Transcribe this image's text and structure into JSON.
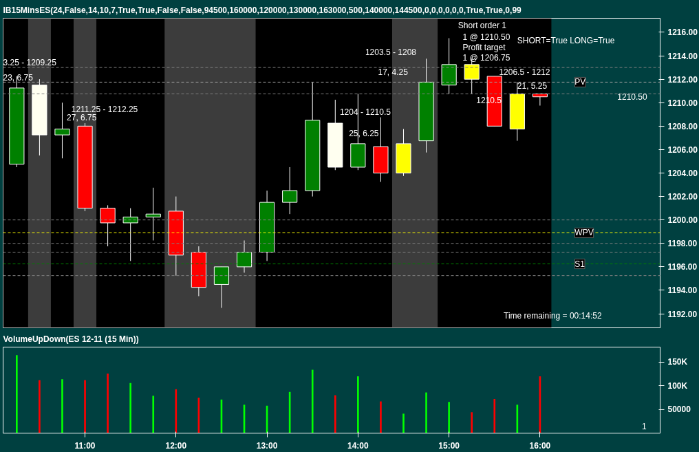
{
  "chart_data": [
    {
      "type": "candlestick",
      "title": "IB15MinsES(24,False,14,10,7,True,True,False,False,94500,160000,120000,130000,163000,500,140000,144500,0,0,0,0,0,0,True,True,0,99",
      "x": [
        10.25,
        10.5,
        10.75,
        11,
        11.25,
        11.5,
        11.75,
        12,
        12.25,
        12.5,
        12.75,
        13,
        13.25,
        13.5,
        13.75,
        14,
        14.25,
        14.5,
        14.75,
        15,
        15.25,
        15.5,
        15.75,
        16
      ],
      "ohlc": [
        [
          1204.75,
          1212.25,
          1204.5,
          1211.25
        ],
        [
          1211.5,
          1212.0,
          1205.5,
          1207.25
        ],
        [
          1207.25,
          1210.0,
          1205.25,
          1207.75
        ],
        [
          1208.0,
          1208.25,
          1200.75,
          1201.0
        ],
        [
          1201.0,
          1201.25,
          1197.75,
          1199.75
        ],
        [
          1199.75,
          1201.0,
          1196.5,
          1200.25
        ],
        [
          1200.25,
          1202.75,
          1198.25,
          1200.5
        ],
        [
          1200.75,
          1202.0,
          1195.25,
          1197.0
        ],
        [
          1197.25,
          1197.75,
          1193.5,
          1194.25
        ],
        [
          1194.5,
          1196.0,
          1192.5,
          1196.0
        ],
        [
          1196.0,
          1198.25,
          1195.5,
          1197.25
        ],
        [
          1197.25,
          1202.5,
          1196.5,
          1201.5
        ],
        [
          1201.5,
          1204.5,
          1200.5,
          1202.5
        ],
        [
          1202.5,
          1211.75,
          1202.0,
          1208.5
        ],
        [
          1208.25,
          1210.25,
          1204.25,
          1204.5
        ],
        [
          1204.5,
          1210.75,
          1204.25,
          1206.5
        ],
        [
          1206.25,
          1208.75,
          1203.25,
          1204.0
        ],
        [
          1206.5,
          1207.75,
          1203.75,
          1204.0
        ],
        [
          1206.75,
          1213.75,
          1205.75,
          1211.75
        ],
        [
          1211.5,
          1215.5,
          1210.75,
          1213.25
        ],
        [
          1213.25,
          1213.75,
          1210.75,
          1212.0
        ],
        [
          1212.25,
          1212.25,
          1208.0,
          1208.0
        ],
        [
          1210.75,
          1211.75,
          1206.75,
          1207.75
        ],
        [
          1210.75,
          1210.75,
          1209.75,
          1210.5
        ]
      ],
      "colors": [
        "#008000",
        "#fffff0",
        "#008000",
        "#ff0000",
        "#ff0000",
        "#008000",
        "#008000",
        "#ff0000",
        "#ff0000",
        "#008000",
        "#008000",
        "#008000",
        "#008000",
        "#008000",
        "#fffff0",
        "#008000",
        "#ff0000",
        "#ffff00",
        "#008000",
        "#008000",
        "#ffff00",
        "#ff0000",
        "#ffff00",
        "#ff0000"
      ],
      "xlim": [
        10.1,
        17.32
      ],
      "ylim": [
        1190.8,
        1217.2
      ],
      "yticks": [
        {
          "value": 1192,
          "label": "1192.00"
        },
        {
          "value": 1194,
          "label": "1194.00"
        },
        {
          "value": 1196,
          "label": "1196.00"
        },
        {
          "value": 1198,
          "label": "1198.00"
        },
        {
          "value": 1200,
          "label": "1200.00"
        },
        {
          "value": 1202,
          "label": "1202.00"
        },
        {
          "value": 1204,
          "label": "1204.00"
        },
        {
          "value": 1206,
          "label": "1206.00"
        },
        {
          "value": 1208,
          "label": "1208.00"
        },
        {
          "value": 1210,
          "label": "1210.00"
        },
        {
          "value": 1212,
          "label": "1212.00"
        },
        {
          "value": 1214,
          "label": "1214.00"
        },
        {
          "value": 1216,
          "label": "1216.00"
        }
      ],
      "tick_labels": "y",
      "bands": [
        {
          "axis": "x",
          "from": 10.1,
          "to": 16.125,
          "color": "#000000"
        },
        {
          "axis": "x",
          "from": 10.375,
          "to": 10.625,
          "color": "#3c3c3c"
        },
        {
          "axis": "x",
          "from": 10.875,
          "to": 11.125,
          "color": "#3c3c3c"
        },
        {
          "axis": "x",
          "from": 11.875,
          "to": 12.875,
          "color": "#3c3c3c"
        },
        {
          "axis": "x",
          "from": 14.375,
          "to": 14.875,
          "color": "#3c3c3c"
        }
      ],
      "ref_lines": [
        {
          "axis": "y",
          "value": 1213.0,
          "color": "#808080",
          "line_style": "dashed"
        },
        {
          "axis": "y",
          "value": 1211.75,
          "label": "PV",
          "color": "#a0a0a0",
          "line_style": "dashed"
        },
        {
          "axis": "y",
          "value": 1210.75,
          "color": "#808080",
          "line_style": "dashed"
        },
        {
          "axis": "y",
          "value": 1200.0,
          "color": "#808080",
          "line_style": "dashed"
        },
        {
          "axis": "y",
          "value": 1198.9,
          "label": "WPV",
          "color": "#ffff00",
          "line_style": "dashed"
        },
        {
          "axis": "y",
          "value": 1198.0,
          "color": "#808080",
          "line_style": "dashed"
        },
        {
          "axis": "y",
          "value": 1197.25,
          "color": "#808080",
          "line_style": "dashed"
        },
        {
          "axis": "y",
          "value": 1196.25,
          "label": "S1",
          "color": "#008000",
          "line_style": "dashed"
        },
        {
          "axis": "y",
          "value": 1195.25,
          "color": "#808080",
          "line_style": "dashed"
        }
      ],
      "annotations": [
        "3.25 - 1209.25",
        "23, 6.75",
        "1211.25 - 1212.25",
        "27, 6.75",
        "1204 - 1210.5",
        "25, 6.25",
        "1203.5 - 1208",
        "17, 4.25",
        "1206.5 - 1212",
        "21, 5.25",
        "1210.5",
        "Short order 1",
        "1 @ 1210.50",
        "Profit target",
        "1 @ 1206.75",
        "SHORT=True LONG=True",
        "Time remaining = 00:14:52",
        "1210.50"
      ]
    },
    {
      "type": "bar",
      "title": "VolumeUpDown(ES 12-11 (15 Min))",
      "x": [
        10.25,
        10.5,
        10.75,
        11,
        11.25,
        11.5,
        11.75,
        12,
        12.25,
        12.5,
        12.75,
        13,
        13.25,
        13.5,
        13.75,
        14,
        14.25,
        14.5,
        14.75,
        15,
        15.25,
        15.5,
        15.75,
        16
      ],
      "values": [
        165000,
        112000,
        114000,
        112000,
        126000,
        106000,
        79000,
        93000,
        75000,
        71000,
        60000,
        58000,
        87000,
        134000,
        80000,
        120000,
        67000,
        41000,
        86000,
        66000,
        44000,
        72000,
        60000,
        120000
      ],
      "colors": [
        "#00ff00",
        "#ff0000",
        "#00ff00",
        "#ff0000",
        "#ff0000",
        "#00ff00",
        "#00ff00",
        "#ff0000",
        "#ff0000",
        "#00ff00",
        "#00ff00",
        "#00ff00",
        "#00ff00",
        "#00ff00",
        "#ff0000",
        "#00ff00",
        "#ff0000",
        "#00ff00",
        "#00ff00",
        "#00ff00",
        "#ff0000",
        "#ff0000",
        "#00ff00",
        "#ff0000"
      ],
      "xlim": [
        10.1,
        17.32
      ],
      "ylim": [
        0,
        182000
      ],
      "xticks": [
        {
          "value": 11,
          "label": "11:00"
        },
        {
          "value": 12,
          "label": "12:00"
        },
        {
          "value": 13,
          "label": "13:00"
        },
        {
          "value": 14,
          "label": "14:00"
        },
        {
          "value": 15,
          "label": "15:00"
        },
        {
          "value": 16,
          "label": "16:00"
        }
      ],
      "yticks": [
        50000,
        {
          "value": 100000,
          "label": "100K"
        },
        {
          "value": 150000,
          "label": "150K"
        }
      ],
      "annotations": [
        "1"
      ]
    }
  ]
}
